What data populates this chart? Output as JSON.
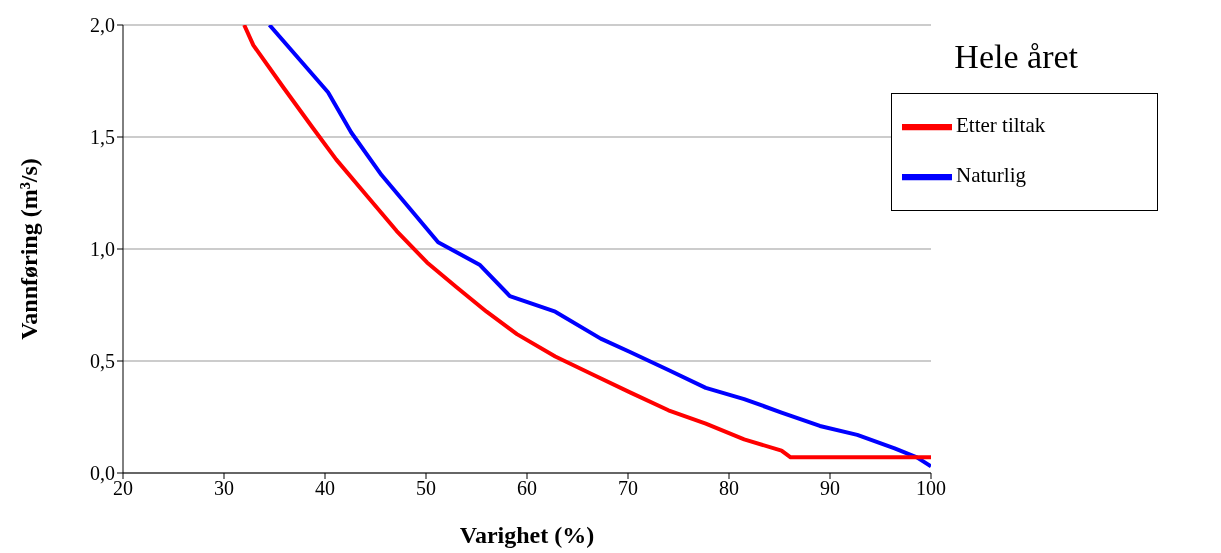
{
  "chart_data": {
    "type": "line",
    "title": "Hele året",
    "xlabel": "Varighet (%)",
    "ylabel": "Vannføring (m³/s)",
    "xlim": [
      20,
      100
    ],
    "xticks": [
      20,
      30,
      40,
      50,
      60,
      70,
      80,
      90,
      100
    ],
    "ylim": [
      0,
      2
    ],
    "yticks": [
      {
        "value": 0,
        "label": "0,0"
      },
      {
        "value": 0.5,
        "label": "0,5"
      },
      {
        "value": 1,
        "label": "1,0"
      },
      {
        "value": 1.5,
        "label": "1,5"
      },
      {
        "value": 2,
        "label": "2,0"
      }
    ],
    "grid": "y",
    "legend": "top right",
    "marker": "none",
    "line_style": "solid",
    "series": [
      {
        "name": "Naturlig",
        "color": "#0000ff",
        "x": [
          34.5,
          40.3,
          42.6,
          45.6,
          48.6,
          51.2,
          55.3,
          58.3,
          62.8,
          67.3,
          70.2,
          74,
          77.7,
          81.5,
          85.2,
          89,
          92.7,
          96.4,
          98.6,
          100
        ],
        "values": [
          2.0,
          1.7,
          1.52,
          1.33,
          1.17,
          1.03,
          0.93,
          0.79,
          0.72,
          0.6,
          0.54,
          0.46,
          0.38,
          0.33,
          0.27,
          0.21,
          0.17,
          0.11,
          0.07,
          0.03
        ]
      },
      {
        "name": "Etter tiltak",
        "color": "#ff0000",
        "x": [
          32,
          32.9,
          35.9,
          38.8,
          41.1,
          44.1,
          47.1,
          50.1,
          53,
          56,
          59,
          62.8,
          66.5,
          70.2,
          74,
          77.7,
          81.5,
          85.2,
          86.1,
          100
        ],
        "values": [
          2.0,
          1.91,
          1.72,
          1.54,
          1.4,
          1.24,
          1.08,
          0.94,
          0.83,
          0.72,
          0.62,
          0.52,
          0.44,
          0.36,
          0.28,
          0.22,
          0.15,
          0.1,
          0.07,
          0.07
        ]
      }
    ]
  }
}
